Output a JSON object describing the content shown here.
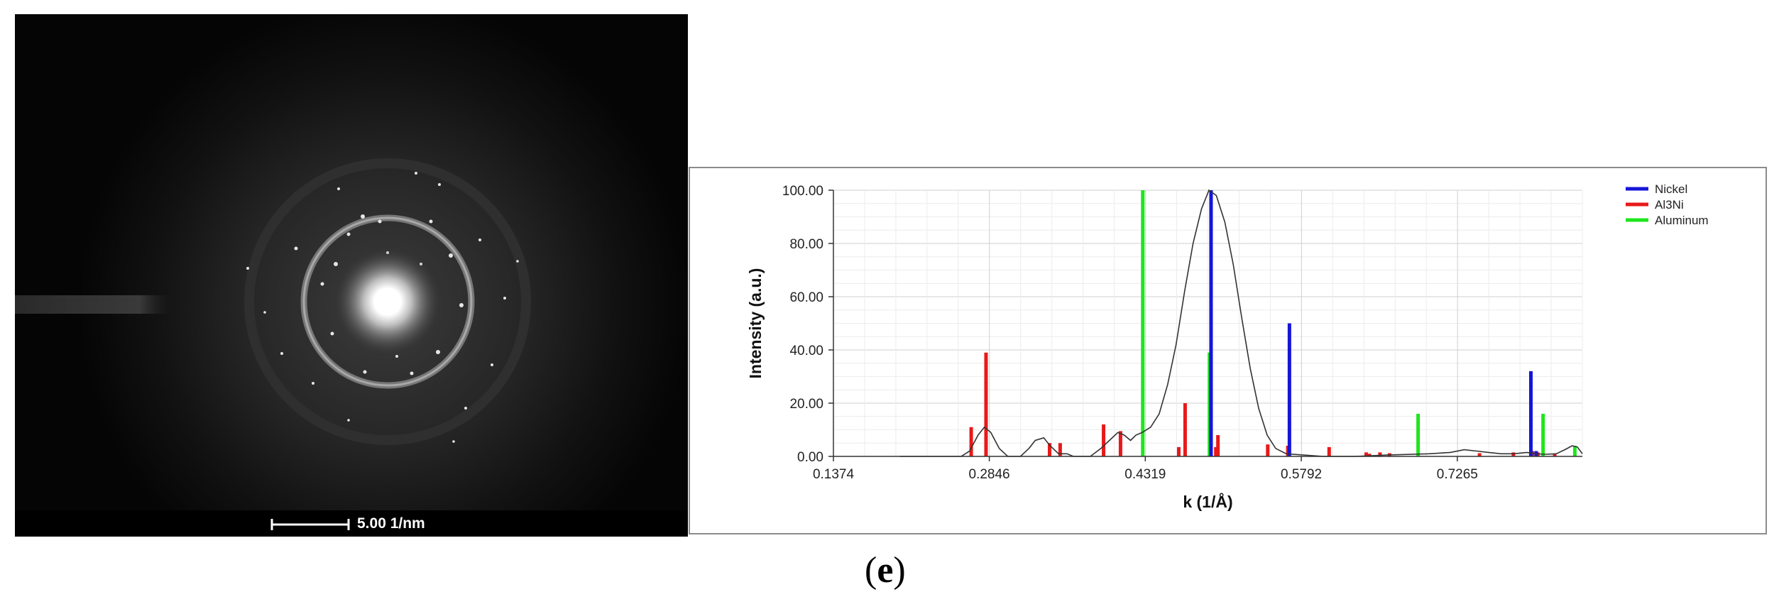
{
  "tem_image": {
    "scale_bar_label": "5.00 1/nm"
  },
  "panel_caption": {
    "open": "(",
    "letter": "e",
    "close": ")"
  },
  "colors": {
    "nickel": "#1515d8",
    "al3ni": "#e81919",
    "aluminum": "#1ee61e",
    "profile": "#333333",
    "grid": "#d9d9d9"
  },
  "chart_data": {
    "type": "bar",
    "xlabel": "k (1/Å)",
    "ylabel": "Intensity (a.u.)",
    "xlim": [
      0.1374,
      0.8446
    ],
    "ylim": [
      0,
      100
    ],
    "x_tick_labels": [
      "0.1374",
      "0.2846",
      "0.4319",
      "0.5792",
      "0.7265"
    ],
    "y_tick_labels": [
      "0.00",
      "20.00",
      "40.00",
      "60.00",
      "80.00",
      "100.00"
    ],
    "grid": true,
    "legend_position": "top-right",
    "series": [
      {
        "name": "Nickel",
        "color": "#1515d8",
        "peaks": [
          [
            0.494,
            100
          ],
          [
            0.568,
            50
          ],
          [
            0.796,
            32
          ],
          [
            0.801,
            2
          ]
        ]
      },
      {
        "name": "Al3Ni",
        "color": "#e81919",
        "peaks": [
          [
            0.2675,
            11
          ],
          [
            0.2815,
            39
          ],
          [
            0.3415,
            5
          ],
          [
            0.3515,
            5
          ],
          [
            0.3925,
            12
          ],
          [
            0.4085,
            9.5
          ],
          [
            0.4635,
            3.5
          ],
          [
            0.4695,
            20
          ],
          [
            0.4985,
            3.5
          ],
          [
            0.5005,
            8
          ],
          [
            0.5475,
            4.5
          ],
          [
            0.5665,
            4
          ],
          [
            0.6055,
            3.5
          ],
          [
            0.6405,
            1.5
          ],
          [
            0.6435,
            1
          ],
          [
            0.6535,
            1.5
          ],
          [
            0.6625,
            1.2
          ],
          [
            0.7475,
            1.2
          ],
          [
            0.7795,
            1.5
          ],
          [
            0.7975,
            2
          ],
          [
            0.8025,
            1.5
          ],
          [
            0.8185,
            1
          ]
        ]
      },
      {
        "name": "Aluminum",
        "color": "#1ee61e",
        "peaks": [
          [
            0.4295,
            100
          ],
          [
            0.4925,
            39
          ],
          [
            0.6895,
            16
          ],
          [
            0.8075,
            16
          ],
          [
            0.8375,
            4
          ]
        ]
      },
      {
        "name": "",
        "color": "#333333",
        "type": "line",
        "points": [
          [
            0.2,
            0
          ],
          [
            0.258,
            0
          ],
          [
            0.266,
            2
          ],
          [
            0.274,
            8
          ],
          [
            0.28,
            11
          ],
          [
            0.286,
            9
          ],
          [
            0.294,
            3
          ],
          [
            0.302,
            0
          ],
          [
            0.314,
            0
          ],
          [
            0.322,
            3
          ],
          [
            0.328,
            6
          ],
          [
            0.336,
            7
          ],
          [
            0.342,
            4
          ],
          [
            0.35,
            1
          ],
          [
            0.358,
            1
          ],
          [
            0.364,
            0
          ],
          [
            0.38,
            0
          ],
          [
            0.39,
            3
          ],
          [
            0.398,
            6
          ],
          [
            0.406,
            9
          ],
          [
            0.412,
            8
          ],
          [
            0.418,
            6
          ],
          [
            0.423,
            8
          ],
          [
            0.429,
            9
          ],
          [
            0.437,
            11
          ],
          [
            0.445,
            16
          ],
          [
            0.453,
            27
          ],
          [
            0.461,
            42
          ],
          [
            0.469,
            62
          ],
          [
            0.477,
            80
          ],
          [
            0.485,
            93
          ],
          [
            0.492,
            100
          ],
          [
            0.499,
            98
          ],
          [
            0.507,
            88
          ],
          [
            0.515,
            72
          ],
          [
            0.523,
            52
          ],
          [
            0.531,
            33
          ],
          [
            0.539,
            18
          ],
          [
            0.547,
            8
          ],
          [
            0.555,
            3
          ],
          [
            0.565,
            1
          ],
          [
            0.6,
            0
          ],
          [
            0.63,
            0
          ],
          [
            0.66,
            0.5
          ],
          [
            0.7,
            1
          ],
          [
            0.72,
            1.5
          ],
          [
            0.733,
            2.5
          ],
          [
            0.745,
            2
          ],
          [
            0.756,
            1.5
          ],
          [
            0.768,
            1
          ],
          [
            0.78,
            1
          ],
          [
            0.792,
            1.5
          ],
          [
            0.8,
            1
          ],
          [
            0.81,
            0.8
          ],
          [
            0.82,
            1
          ],
          [
            0.828,
            2.5
          ],
          [
            0.835,
            4
          ],
          [
            0.84,
            3.5
          ],
          [
            0.8446,
            1
          ]
        ]
      }
    ]
  }
}
